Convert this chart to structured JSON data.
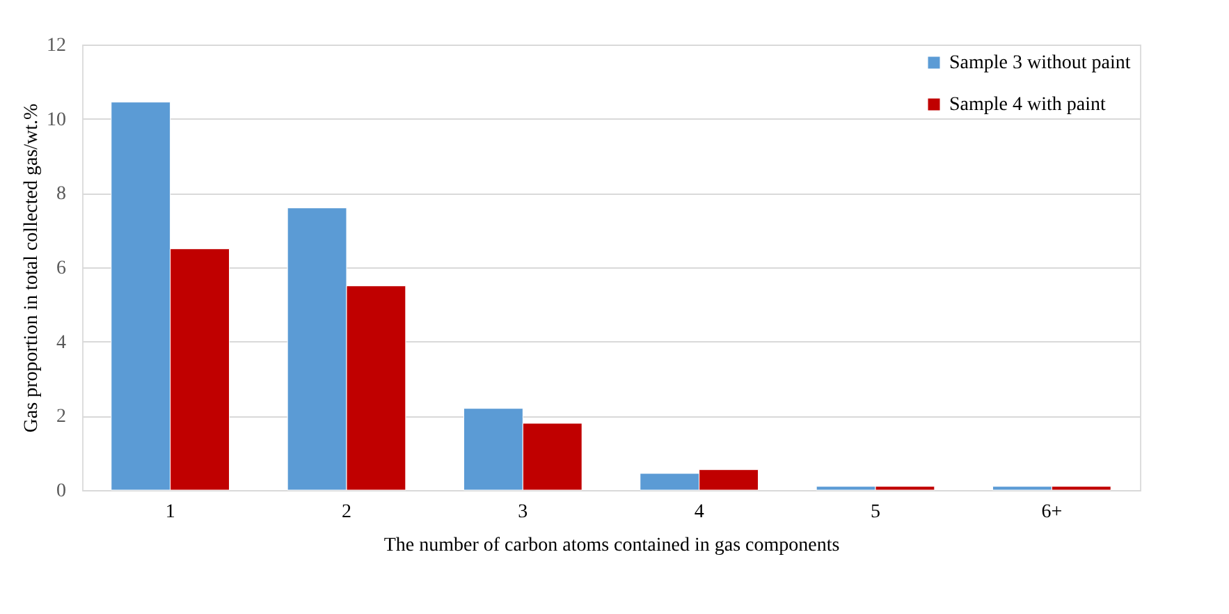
{
  "chart_data": {
    "type": "bar",
    "xlabel": "The number of carbon atoms contained in gas components",
    "ylabel": "Gas proportion in total collected gas/wt.%",
    "categories": [
      "1",
      "2",
      "3",
      "4",
      "5",
      "6+"
    ],
    "series": [
      {
        "name": "Sample 3 without paint",
        "color": "#5b9bd5",
        "values": [
          10.45,
          7.6,
          2.2,
          0.45,
          0.1,
          0.1
        ]
      },
      {
        "name": "Sample 4 with paint",
        "color": "#c00000",
        "values": [
          6.5,
          5.5,
          1.8,
          0.55,
          0.1,
          0.1
        ]
      }
    ],
    "ylim": [
      0,
      12
    ],
    "yticks": [
      0,
      2,
      4,
      6,
      8,
      10,
      12
    ],
    "grid": "y",
    "legend": "top right"
  }
}
